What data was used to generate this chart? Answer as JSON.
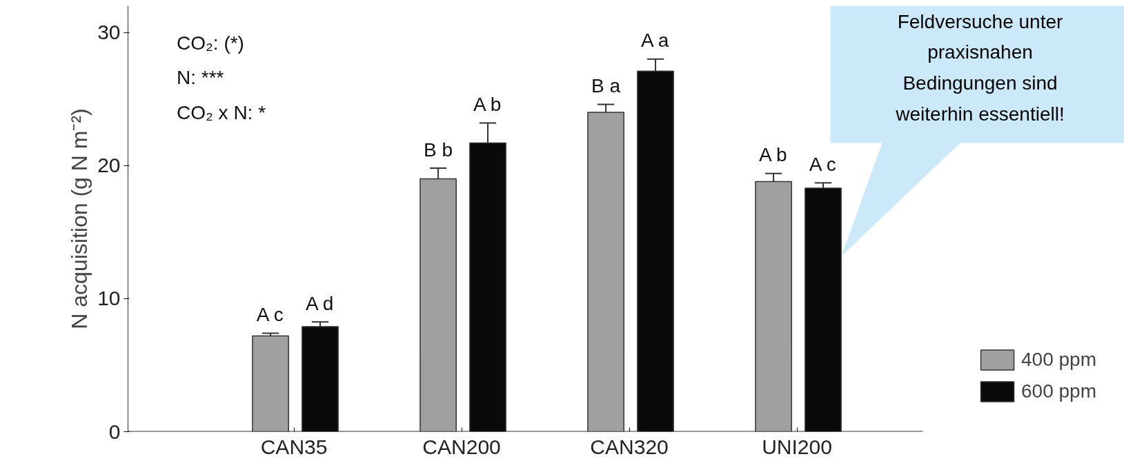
{
  "chart_data": {
    "type": "bar",
    "ylabel": "N acquisition (g N m⁻²)",
    "categories": [
      "CAN35",
      "CAN200",
      "CAN320",
      "UNI200"
    ],
    "ylim": [
      0,
      32
    ],
    "yticks": [
      0,
      10,
      20,
      30
    ],
    "grid": false,
    "legend": "bottom right",
    "series": [
      {
        "name": "400 ppm",
        "color": "#a0a0a0",
        "values": [
          7.2,
          19.0,
          24.0,
          18.8
        ],
        "errors": [
          [
            7.2,
            7.4
          ],
          [
            19.0,
            19.8
          ],
          [
            24.0,
            24.6
          ],
          [
            18.8,
            19.4
          ]
        ],
        "value_labels": [
          "A c",
          "B b",
          "B a",
          "A b"
        ]
      },
      {
        "name": "600 ppm",
        "color": "#0a0a0a",
        "values": [
          7.9,
          21.7,
          27.1,
          18.3
        ],
        "errors": [
          [
            7.9,
            8.25
          ],
          [
            21.7,
            23.2
          ],
          [
            27.1,
            28.0
          ],
          [
            18.3,
            18.7
          ]
        ],
        "value_labels": [
          "A d",
          "A b",
          "A a",
          "A c"
        ]
      }
    ],
    "annotations": [
      "CO₂: (*)",
      "N: ***",
      "CO₂ x N: *",
      "Feldversuche unter praxisnahen Bedingungen sind weiterhin essentiell!"
    ]
  }
}
